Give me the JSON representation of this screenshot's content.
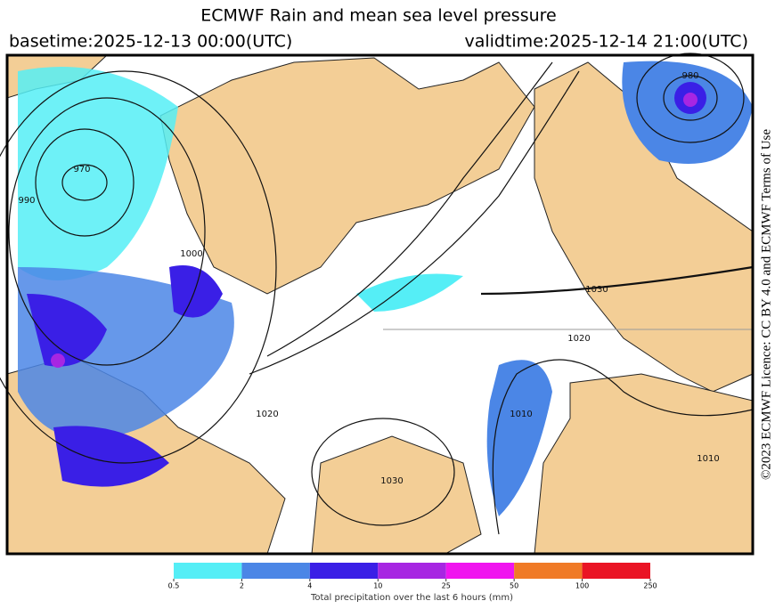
{
  "header": {
    "title": "ECMWF Rain and mean sea level pressure",
    "basetime": "basetime:2025-12-13 00:00(UTC)",
    "validtime": "validtime:2025-12-14 21:00(UTC)"
  },
  "side_text": "©2023 ECMWF  Licence: CC BY 4.0 and ECMWF  Terms of Use",
  "map": {
    "isobar_labels": [
      "970",
      "980",
      "990",
      "1000",
      "1010",
      "1020",
      "1030",
      "1030",
      "1010",
      "1020"
    ]
  },
  "colorbar": {
    "ticks": [
      0.5,
      2,
      4,
      10,
      25,
      50,
      100,
      250
    ],
    "colors": [
      "#55eef6",
      "#4b86e6",
      "#3a1fe6",
      "#a726e2",
      "#f014ef",
      "#f07a26",
      "#ea1424"
    ],
    "label": "Total precipitation over the last 6 hours (mm)"
  }
}
